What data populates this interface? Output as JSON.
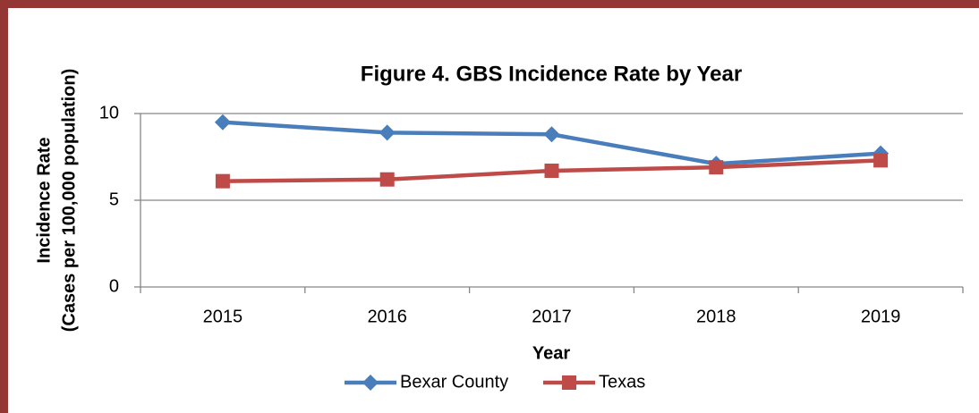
{
  "chart_data": {
    "type": "line",
    "title": "Figure 4. GBS Incidence Rate by Year",
    "xlabel": "Year",
    "ylabel": [
      "Incidence Rate",
      "(Cases per 100,000 population)"
    ],
    "categories": [
      "2015",
      "2016",
      "2017",
      "2018",
      "2019"
    ],
    "series": [
      {
        "name": "Bexar County",
        "color": "#4a7ebb",
        "marker": "diamond",
        "values": [
          9.5,
          8.9,
          8.8,
          7.1,
          7.7
        ]
      },
      {
        "name": "Texas",
        "color": "#be4b48",
        "marker": "square",
        "values": [
          6.1,
          6.2,
          6.7,
          6.9,
          7.3
        ]
      }
    ],
    "ylim": [
      0,
      10
    ],
    "yticks": [
      0,
      5,
      10
    ],
    "grid": true,
    "legend": "bottom"
  }
}
